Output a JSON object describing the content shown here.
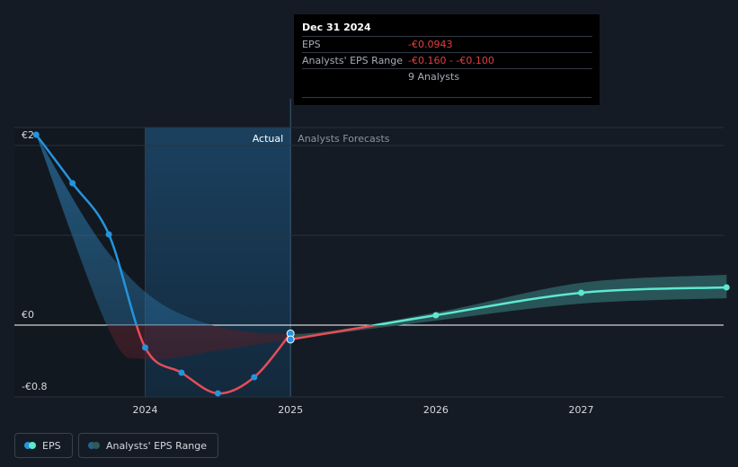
{
  "chart_data": {
    "type": "line",
    "y_axis": {
      "ticks": [
        {
          "value": 2,
          "label": "€2"
        },
        {
          "value": 0,
          "label": "€0"
        },
        {
          "value": -0.8,
          "label": "-€0.8"
        }
      ],
      "ylim": [
        -0.8,
        2.2
      ]
    },
    "x_axis": {
      "ticks": [
        {
          "value": 2024.0,
          "label": "2024"
        },
        {
          "value": 2025.0,
          "label": "2025"
        },
        {
          "value": 2026.0,
          "label": "2026"
        },
        {
          "value": 2027.0,
          "label": "2027"
        }
      ],
      "xlim": [
        2023.1,
        2027.98
      ]
    },
    "regions": {
      "actual_label": "Actual",
      "forecast_label": "Analysts Forecasts",
      "actual_start": 2024.0,
      "divider": 2025.0
    },
    "series": [
      {
        "name": "EPS",
        "kind": "actual",
        "points": [
          {
            "x": 2023.25,
            "y": 2.12
          },
          {
            "x": 2023.5,
            "y": 1.58
          },
          {
            "x": 2023.75,
            "y": 1.01
          },
          {
            "x": 2024.0,
            "y": -0.25
          },
          {
            "x": 2024.25,
            "y": -0.53
          },
          {
            "x": 2024.5,
            "y": -0.76
          },
          {
            "x": 2024.75,
            "y": -0.58
          },
          {
            "x": 2025.0,
            "y": -0.0943
          }
        ]
      },
      {
        "name": "EPS",
        "kind": "forecast",
        "points": [
          {
            "x": 2025.0,
            "y": -0.16
          },
          {
            "x": 2026.0,
            "y": 0.11
          },
          {
            "x": 2027.0,
            "y": 0.36
          },
          {
            "x": 2028.0,
            "y": 0.42
          }
        ]
      },
      {
        "name": "Analysts' EPS Range",
        "kind": "range",
        "upper": [
          {
            "x": 2023.25,
            "y": 2.12
          },
          {
            "x": 2023.75,
            "y": 0.8
          },
          {
            "x": 2024.25,
            "y": 0.12
          },
          {
            "x": 2025.0,
            "y": -0.1
          },
          {
            "x": 2026.0,
            "y": 0.14
          },
          {
            "x": 2027.0,
            "y": 0.47
          },
          {
            "x": 2028.0,
            "y": 0.56
          }
        ],
        "lower": [
          {
            "x": 2023.25,
            "y": 2.12
          },
          {
            "x": 2023.75,
            "y": -0.05
          },
          {
            "x": 2024.0,
            "y": -0.38
          },
          {
            "x": 2024.5,
            "y": -0.28
          },
          {
            "x": 2025.0,
            "y": -0.16
          },
          {
            "x": 2026.0,
            "y": 0.05
          },
          {
            "x": 2027.0,
            "y": 0.24
          },
          {
            "x": 2028.0,
            "y": 0.3
          }
        ]
      }
    ],
    "colors": {
      "eps_line": "#2394df",
      "eps_negative": "#e64d57",
      "forecast_line": "#5ee8cf",
      "range_fill": "#2a74a6",
      "range_forecast_fill": "#2e5b57",
      "grid": "#2a313b",
      "zero_line": "#ffffff"
    }
  },
  "tooltip": {
    "date": "Dec 31 2024",
    "eps_label": "EPS",
    "eps_value": "-€0.0943",
    "range_label": "Analysts' EPS Range",
    "range_value": "-€0.160 - -€0.100",
    "analysts": "9 Analysts"
  },
  "legend": {
    "eps": "EPS",
    "range": "Analysts' EPS Range"
  }
}
